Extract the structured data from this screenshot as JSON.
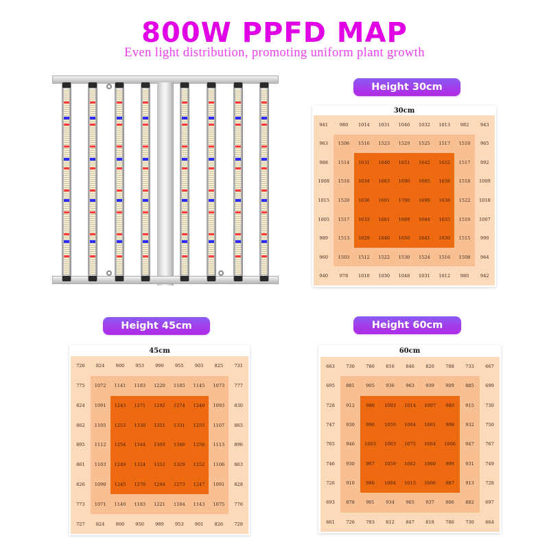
{
  "header": {
    "title": "800W PPFD MAP",
    "subtitle": "Even light distribution, promoting uniform plant growth"
  },
  "colors": {
    "title": "#E100E6",
    "subtitle": "#F03CF0",
    "pill_gradient": [
      "#8A5CF5",
      "#B02AE6"
    ],
    "outer_ring": "#FCD9B8",
    "middle_ring": "#F8BF92",
    "center_block": "#EE6A10"
  },
  "product_image": {
    "description": "8-bar LED grow light fixture with red, blue and white diodes",
    "bar_count": 8,
    "icon": "grow-light-fixture"
  },
  "maps": [
    {
      "pill_label": "Height 30cm",
      "card_title": "30cm",
      "rows": [
        [
          "941",
          "980",
          "1014",
          "1031",
          "1046",
          "1032",
          "1013",
          "982",
          "943"
        ],
        [
          "963",
          "1506",
          "1516",
          "1523",
          "1529",
          "1525",
          "1517",
          "1510",
          "965"
        ],
        [
          "988",
          "1514",
          "1631",
          "1640",
          "1651",
          "1642",
          "1632",
          "1517",
          "992"
        ],
        [
          "1008",
          "1516",
          "1634",
          "1683",
          "1690",
          "1685",
          "1636",
          "1518",
          "1009"
        ],
        [
          "1015",
          "1520",
          "1636",
          "1691",
          "1700",
          "1690",
          "1638",
          "1522",
          "1018"
        ],
        [
          "1005",
          "1517",
          "1633",
          "1681",
          "1689",
          "1684",
          "1635",
          "1519",
          "1007"
        ],
        [
          "989",
          "1513",
          "1629",
          "1640",
          "1650",
          "1641",
          "1630",
          "1515",
          "990"
        ],
        [
          "960",
          "1503",
          "1512",
          "1522",
          "1530",
          "1524",
          "1516",
          "1508",
          "964"
        ],
        [
          "940",
          "978",
          "1010",
          "1030",
          "1048",
          "1031",
          "1012",
          "980",
          "942"
        ]
      ]
    },
    {
      "pill_label": "Height 45cm",
      "card_title": "45cm",
      "rows": [
        [
          "726",
          "824",
          "900",
          "953",
          "990",
          "955",
          "903",
          "825",
          "731"
        ],
        [
          "775",
          "1072",
          "1141",
          "1183",
          "1220",
          "1185",
          "1145",
          "1073",
          "777"
        ],
        [
          "824",
          "1091",
          "1243",
          "1271",
          "1292",
          "1274",
          "1246",
          "1093",
          "830"
        ],
        [
          "862",
          "1105",
          "1253",
          "1330",
          "1351",
          "1331",
          "1255",
          "1107",
          "865"
        ],
        [
          "895",
          "1112",
          "1254",
          "1344",
          "1360",
          "1346",
          "1256",
          "1113",
          "896"
        ],
        [
          "861",
          "1103",
          "1249",
          "1324",
          "1352",
          "1329",
          "1252",
          "1106",
          "863"
        ],
        [
          "826",
          "1090",
          "1245",
          "1270",
          "1294",
          "1273",
          "1247",
          "1091",
          "828"
        ],
        [
          "773",
          "1071",
          "1140",
          "1183",
          "1221",
          "1184",
          "1143",
          "1075",
          "776"
        ],
        [
          "727",
          "824",
          "900",
          "950",
          "989",
          "953",
          "901",
          "826",
          "729"
        ]
      ]
    },
    {
      "pill_label": "Height 60cm",
      "card_title": "60cm",
      "rows": [
        [
          "663",
          "730",
          "786",
          "816",
          "846",
          "820",
          "788",
          "733",
          "667"
        ],
        [
          "695",
          "881",
          "905",
          "936",
          "963",
          "939",
          "909",
          "885",
          "699"
        ],
        [
          "728",
          "912",
          "986",
          "1003",
          "1014",
          "1007",
          "989",
          "915",
          "730"
        ],
        [
          "747",
          "930",
          "996",
          "1059",
          "1064",
          "1061",
          "998",
          "932",
          "750"
        ],
        [
          "765",
          "946",
          "1003",
          "1063",
          "1075",
          "1064",
          "1006",
          "947",
          "767"
        ],
        [
          "746",
          "930",
          "997",
          "1059",
          "1062",
          "1060",
          "999",
          "931",
          "749"
        ],
        [
          "726",
          "910",
          "986",
          "1004",
          "1015",
          "1006",
          "987",
          "913",
          "728"
        ],
        [
          "693",
          "878",
          "901",
          "934",
          "965",
          "937",
          "906",
          "882",
          "697"
        ],
        [
          "661",
          "726",
          "783",
          "812",
          "847",
          "818",
          "786",
          "730",
          "664"
        ]
      ]
    }
  ],
  "chart_data": [
    {
      "type": "heatmap",
      "title": "30cm",
      "label": "Height 30cm",
      "x": [
        1,
        2,
        3,
        4,
        5,
        6,
        7,
        8,
        9
      ],
      "y": [
        1,
        2,
        3,
        4,
        5,
        6,
        7,
        8,
        9
      ],
      "values": [
        [
          941,
          980,
          1014,
          1031,
          1046,
          1032,
          1013,
          982,
          943
        ],
        [
          963,
          1506,
          1516,
          1523,
          1529,
          1525,
          1517,
          1510,
          965
        ],
        [
          988,
          1514,
          1631,
          1640,
          1651,
          1642,
          1632,
          1517,
          992
        ],
        [
          1008,
          1516,
          1634,
          1683,
          1690,
          1685,
          1636,
          1518,
          1009
        ],
        [
          1015,
          1520,
          1636,
          1691,
          1700,
          1690,
          1638,
          1522,
          1018
        ],
        [
          1005,
          1517,
          1633,
          1681,
          1689,
          1684,
          1635,
          1519,
          1007
        ],
        [
          989,
          1513,
          1629,
          1640,
          1650,
          1641,
          1630,
          1515,
          990
        ],
        [
          960,
          1503,
          1512,
          1522,
          1530,
          1524,
          1516,
          1508,
          964
        ],
        [
          940,
          978,
          1010,
          1030,
          1048,
          1031,
          1012,
          980,
          942
        ]
      ]
    },
    {
      "type": "heatmap",
      "title": "45cm",
      "label": "Height 45cm",
      "x": [
        1,
        2,
        3,
        4,
        5,
        6,
        7,
        8,
        9
      ],
      "y": [
        1,
        2,
        3,
        4,
        5,
        6,
        7,
        8,
        9
      ],
      "values": [
        [
          726,
          824,
          900,
          953,
          990,
          955,
          903,
          825,
          731
        ],
        [
          775,
          1072,
          1141,
          1183,
          1220,
          1185,
          1145,
          1073,
          777
        ],
        [
          824,
          1091,
          1243,
          1271,
          1292,
          1274,
          1246,
          1093,
          830
        ],
        [
          862,
          1105,
          1253,
          1330,
          1351,
          1331,
          1255,
          1107,
          865
        ],
        [
          895,
          1112,
          1254,
          1344,
          1360,
          1346,
          1256,
          1113,
          896
        ],
        [
          861,
          1103,
          1249,
          1324,
          1352,
          1329,
          1252,
          1106,
          863
        ],
        [
          826,
          1090,
          1245,
          1270,
          1294,
          1273,
          1247,
          1091,
          828
        ],
        [
          773,
          1071,
          1140,
          1183,
          1221,
          1184,
          1143,
          1075,
          776
        ],
        [
          727,
          824,
          900,
          950,
          989,
          953,
          901,
          826,
          729
        ]
      ]
    },
    {
      "type": "heatmap",
      "title": "60cm",
      "label": "Height 60cm",
      "x": [
        1,
        2,
        3,
        4,
        5,
        6,
        7,
        8,
        9
      ],
      "y": [
        1,
        2,
        3,
        4,
        5,
        6,
        7,
        8,
        9
      ],
      "values": [
        [
          663,
          730,
          786,
          816,
          846,
          820,
          788,
          733,
          667
        ],
        [
          695,
          881,
          905,
          936,
          963,
          939,
          909,
          885,
          699
        ],
        [
          728,
          912,
          986,
          1003,
          1014,
          1007,
          989,
          915,
          730
        ],
        [
          747,
          930,
          996,
          1059,
          1064,
          1061,
          998,
          932,
          750
        ],
        [
          765,
          946,
          1003,
          1063,
          1075,
          1064,
          1006,
          947,
          767
        ],
        [
          746,
          930,
          997,
          1059,
          1062,
          1060,
          999,
          931,
          749
        ],
        [
          726,
          910,
          986,
          1004,
          1015,
          1006,
          987,
          913,
          728
        ],
        [
          693,
          878,
          901,
          934,
          965,
          937,
          906,
          882,
          697
        ],
        [
          661,
          726,
          783,
          812,
          847,
          818,
          786,
          730,
          664
        ]
      ]
    }
  ]
}
